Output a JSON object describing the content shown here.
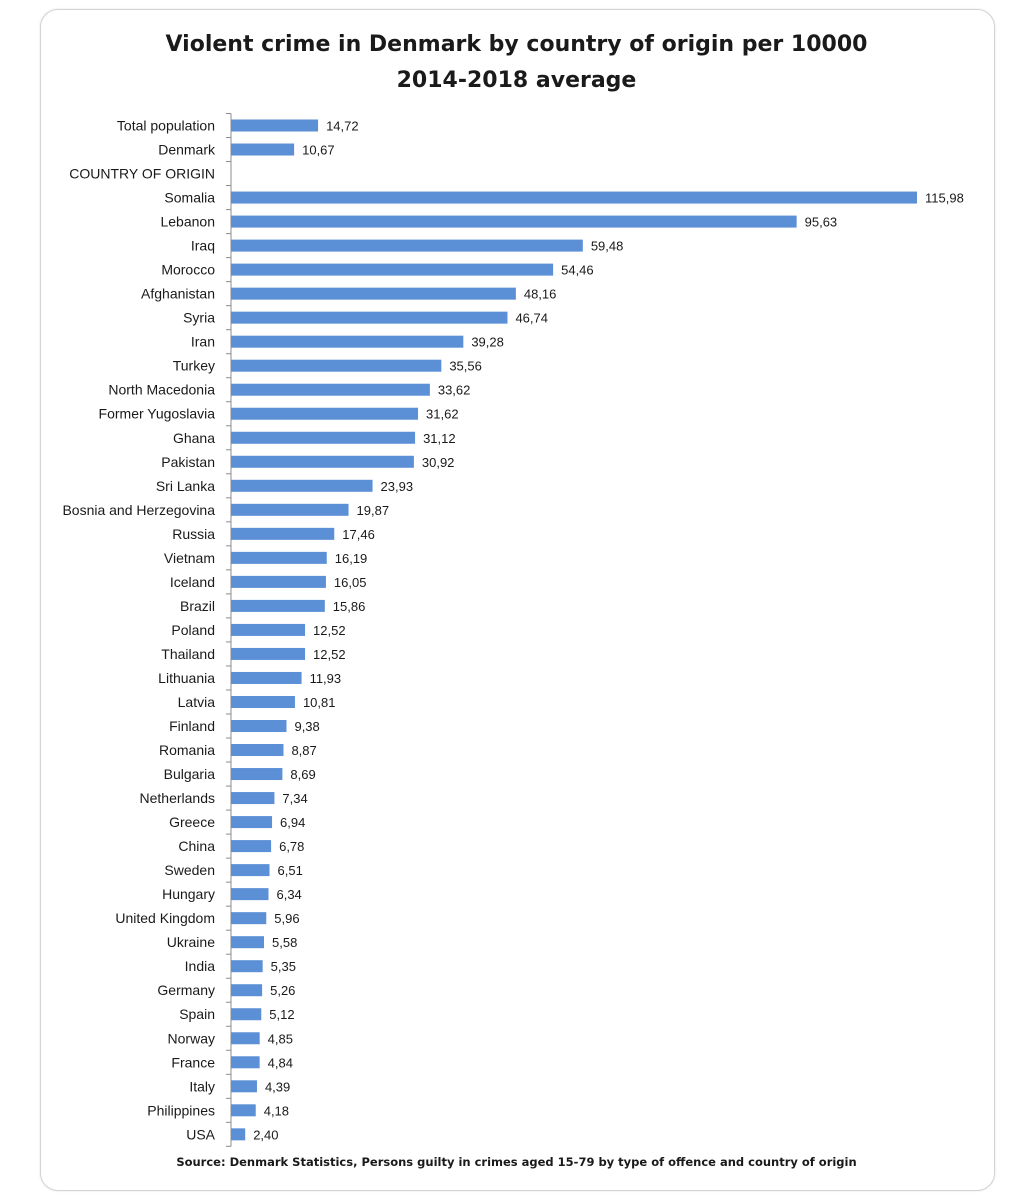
{
  "chart_data": {
    "type": "bar",
    "orientation": "horizontal",
    "title": "Violent crime in Denmark by country of origin per 10000",
    "subtitle": "2014-2018 average",
    "source": "Source: Denmark Statistics, Persons guilty in crimes aged 15-79 by type of offence and country of origin",
    "bar_color": "#5b8fd6",
    "xlim": [
      0,
      116
    ],
    "categories": [
      "Total population",
      "Denmark",
      "COUNTRY OF ORIGIN",
      "Somalia",
      "Lebanon",
      "Iraq",
      "Morocco",
      "Afghanistan",
      "Syria",
      "Iran",
      "Turkey",
      "North Macedonia",
      "Former Yugoslavia",
      "Ghana",
      "Pakistan",
      "Sri Lanka",
      "Bosnia and Herzegovina",
      "Russia",
      "Vietnam",
      "Iceland",
      "Brazil",
      "Poland",
      "Thailand",
      "Lithuania",
      "Latvia",
      "Finland",
      "Romania",
      "Bulgaria",
      "Netherlands",
      "Greece",
      "China",
      "Sweden",
      "Hungary",
      "United Kingdom",
      "Ukraine",
      "India",
      "Germany",
      "Spain",
      "Norway",
      "France",
      "Italy",
      "Philippines",
      "USA"
    ],
    "values": [
      14.72,
      10.67,
      null,
      115.98,
      95.63,
      59.48,
      54.46,
      48.16,
      46.74,
      39.28,
      35.56,
      33.62,
      31.62,
      31.12,
      30.92,
      23.93,
      19.87,
      17.46,
      16.19,
      16.05,
      15.86,
      12.52,
      12.52,
      11.93,
      10.81,
      9.38,
      8.87,
      8.69,
      7.34,
      6.94,
      6.78,
      6.51,
      6.34,
      5.96,
      5.58,
      5.35,
      5.26,
      5.12,
      4.85,
      4.84,
      4.39,
      4.18,
      2.4
    ],
    "value_labels": [
      "14,72",
      "10,67",
      "",
      "115,98",
      "95,63",
      "59,48",
      "54,46",
      "48,16",
      "46,74",
      "39,28",
      "35,56",
      "33,62",
      "31,62",
      "31,12",
      "30,92",
      "23,93",
      "19,87",
      "17,46",
      "16,19",
      "16,05",
      "15,86",
      "12,52",
      "12,52",
      "11,93",
      "10,81",
      "9,38",
      "8,87",
      "8,69",
      "7,34",
      "6,94",
      "6,78",
      "6,51",
      "6,34",
      "5,96",
      "5,58",
      "5,35",
      "5,26",
      "5,12",
      "4,85",
      "4,84",
      "4,39",
      "4,18",
      "2,40"
    ],
    "grid": false,
    "legend": "none"
  }
}
